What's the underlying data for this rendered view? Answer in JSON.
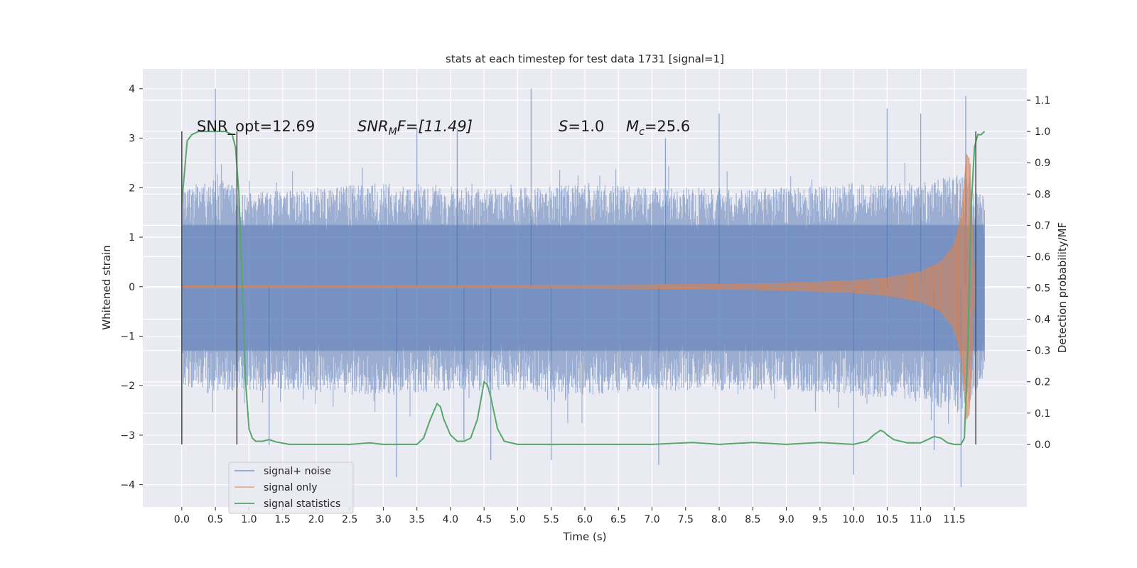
{
  "chart_data": {
    "type": "line",
    "title": "stats at each timestep for test data 1731 [signal=1]",
    "xlabel": "Time (s)",
    "ylabel_left": "Whitened strain",
    "ylabel_right": "Detection probability/MF",
    "xlim": [
      -0.58,
      12.58
    ],
    "ylim_left": [
      -4.45,
      4.4
    ],
    "ylim_right": [
      -0.2,
      1.2
    ],
    "x_ticks": [
      "0.0",
      "0.5",
      "1.0",
      "1.5",
      "2.0",
      "2.5",
      "3.0",
      "3.5",
      "4.0",
      "4.5",
      "5.0",
      "5.5",
      "6.0",
      "6.5",
      "7.0",
      "7.5",
      "8.0",
      "8.5",
      "9.0",
      "9.5",
      "10.0",
      "10.5",
      "11.0",
      "11.5"
    ],
    "y_ticks_left": [
      "4",
      "3",
      "2",
      "1",
      "0",
      "−1",
      "−2",
      "−3",
      "−4"
    ],
    "y_ticks_right": [
      "1.1",
      "1.0",
      "0.9",
      "0.8",
      "0.7",
      "0.6",
      "0.5",
      "0.4",
      "0.3",
      "0.2",
      "0.1",
      "0.0"
    ],
    "grid": true,
    "legend_position": "lower-left",
    "annotations": {
      "snr_opt": "SNR_opt=12.69",
      "snr_mf_prefix": "SNR",
      "snr_mf_sub": "M",
      "snr_mf_suffix": "F=[11.49]",
      "s_prefix": "S",
      "s_suffix": "=1.0",
      "mc_prefix": "M",
      "mc_sub": "c",
      "mc_suffix": "=25.6"
    },
    "vertical_lines_x": [
      0.0,
      0.82,
      11.82
    ],
    "series": [
      {
        "name": "signal+ noise",
        "color": "#4c72b0",
        "envelope": {
          "x": [
            0.0,
            0.5,
            1.0,
            2.0,
            3.0,
            4.0,
            5.0,
            6.0,
            7.0,
            8.0,
            9.0,
            10.0,
            11.0,
            11.6,
            11.95
          ],
          "upper": [
            2.0,
            2.2,
            1.9,
            2.0,
            2.1,
            2.0,
            2.0,
            2.1,
            2.0,
            2.0,
            2.0,
            2.1,
            2.1,
            2.3,
            1.8
          ],
          "lower": [
            -2.0,
            -2.2,
            -2.1,
            -2.1,
            -2.2,
            -2.1,
            -2.1,
            -2.2,
            -2.1,
            -2.1,
            -2.1,
            -2.2,
            -2.3,
            -2.6,
            -1.8
          ]
        },
        "spikes_up": [
          [
            0.5,
            4.0
          ],
          [
            3.5,
            3.2
          ],
          [
            4.1,
            3.2
          ],
          [
            5.2,
            4.0
          ],
          [
            7.2,
            3.0
          ],
          [
            8.0,
            3.5
          ],
          [
            10.5,
            3.6
          ],
          [
            11.0,
            3.5
          ],
          [
            11.67,
            3.85
          ]
        ],
        "spikes_down": [
          [
            1.3,
            -3.2
          ],
          [
            3.2,
            -3.85
          ],
          [
            4.2,
            -3.1
          ],
          [
            4.6,
            -3.5
          ],
          [
            5.5,
            -3.5
          ],
          [
            7.1,
            -3.6
          ],
          [
            10.0,
            -3.8
          ],
          [
            11.2,
            -3.3
          ],
          [
            11.6,
            -4.05
          ]
        ]
      },
      {
        "name": "signal only",
        "color": "#dd8452",
        "envelope": {
          "x": [
            0.0,
            6.0,
            8.0,
            9.0,
            10.0,
            10.5,
            11.0,
            11.3,
            11.5,
            11.6,
            11.65,
            11.7,
            11.75,
            11.8
          ],
          "upper": [
            0.02,
            0.03,
            0.05,
            0.07,
            0.12,
            0.18,
            0.3,
            0.5,
            0.85,
            1.4,
            2.1,
            3.0,
            2.0,
            0.0
          ]
        }
      },
      {
        "name": "signal statistics",
        "color": "#55a868",
        "x": [
          0.0,
          0.08,
          0.15,
          0.25,
          0.35,
          0.5,
          0.65,
          0.75,
          0.8,
          0.85,
          0.9,
          0.95,
          1.0,
          1.05,
          1.1,
          1.2,
          1.3,
          1.4,
          1.6,
          2.0,
          2.5,
          2.8,
          3.0,
          3.5,
          3.6,
          3.7,
          3.8,
          3.85,
          3.9,
          4.0,
          4.1,
          4.2,
          4.3,
          4.4,
          4.5,
          4.55,
          4.6,
          4.7,
          4.8,
          5.0,
          5.5,
          6.0,
          7.0,
          7.6,
          8.0,
          8.5,
          9.0,
          9.5,
          10.0,
          10.2,
          10.3,
          10.4,
          10.45,
          10.5,
          10.6,
          10.8,
          11.0,
          11.2,
          11.3,
          11.4,
          11.5,
          11.6,
          11.65,
          11.7,
          11.75,
          11.8,
          11.85,
          11.9,
          11.95
        ],
        "y": [
          0.77,
          0.97,
          0.99,
          1.0,
          1.0,
          1.0,
          1.0,
          0.99,
          0.95,
          0.8,
          0.5,
          0.2,
          0.05,
          0.02,
          0.01,
          0.01,
          0.015,
          0.008,
          0.0,
          0.0,
          0.0,
          0.005,
          0.0,
          0.0,
          0.02,
          0.08,
          0.13,
          0.12,
          0.08,
          0.03,
          0.01,
          0.01,
          0.02,
          0.08,
          0.2,
          0.19,
          0.15,
          0.05,
          0.01,
          0.0,
          0.0,
          0.0,
          0.0,
          0.006,
          0.0,
          0.006,
          0.0,
          0.006,
          0.0,
          0.01,
          0.03,
          0.045,
          0.04,
          0.03,
          0.015,
          0.005,
          0.005,
          0.025,
          0.02,
          0.005,
          0.0,
          0.0,
          0.02,
          0.3,
          0.75,
          0.95,
          0.99,
          0.99,
          1.0
        ]
      }
    ]
  }
}
